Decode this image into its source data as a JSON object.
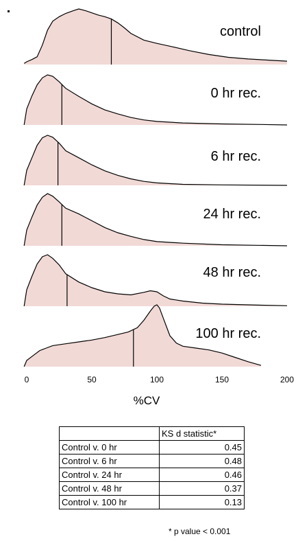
{
  "chart_data": {
    "type": "area",
    "xlabel": "%CV",
    "xlim": [
      0,
      200
    ],
    "x_ticks": [
      0,
      50,
      100,
      150,
      200
    ],
    "x_tick_labels": [
      "0",
      "50",
      "100",
      "150",
      "200"
    ],
    "fill_color": "#f1d9d6",
    "line_color": "#000000",
    "series": [
      {
        "name": "control",
        "median": 65,
        "points": [
          [
            -2,
            0.02
          ],
          [
            0,
            0.05
          ],
          [
            4,
            0.09
          ],
          [
            8,
            0.14
          ],
          [
            12,
            0.35
          ],
          [
            16,
            0.62
          ],
          [
            20,
            0.78
          ],
          [
            25,
            0.86
          ],
          [
            30,
            0.92
          ],
          [
            36,
            0.97
          ],
          [
            40,
            1.0
          ],
          [
            45,
            0.97
          ],
          [
            50,
            0.93
          ],
          [
            55,
            0.89
          ],
          [
            60,
            0.86
          ],
          [
            65,
            0.82
          ],
          [
            70,
            0.75
          ],
          [
            75,
            0.66
          ],
          [
            80,
            0.56
          ],
          [
            90,
            0.44
          ],
          [
            100,
            0.38
          ],
          [
            110,
            0.33
          ],
          [
            125,
            0.25
          ],
          [
            140,
            0.18
          ],
          [
            155,
            0.13
          ],
          [
            170,
            0.1
          ],
          [
            185,
            0.08
          ],
          [
            200,
            0.06
          ]
        ]
      },
      {
        "name": "0 hr rec.",
        "median": 27,
        "points": [
          [
            -2,
            0.0
          ],
          [
            0,
            0.32
          ],
          [
            4,
            0.58
          ],
          [
            8,
            0.8
          ],
          [
            12,
            0.94
          ],
          [
            16,
            1.0
          ],
          [
            20,
            0.97
          ],
          [
            25,
            0.86
          ],
          [
            30,
            0.73
          ],
          [
            40,
            0.57
          ],
          [
            50,
            0.42
          ],
          [
            60,
            0.3
          ],
          [
            70,
            0.22
          ],
          [
            80,
            0.15
          ],
          [
            90,
            0.1
          ],
          [
            100,
            0.07
          ],
          [
            120,
            0.04
          ],
          [
            150,
            0.02
          ],
          [
            180,
            0.01
          ],
          [
            200,
            0.0
          ]
        ]
      },
      {
        "name": "6 hr rec.",
        "median": 24,
        "points": [
          [
            -2,
            0.0
          ],
          [
            0,
            0.3
          ],
          [
            4,
            0.55
          ],
          [
            8,
            0.8
          ],
          [
            12,
            0.95
          ],
          [
            16,
            1.0
          ],
          [
            20,
            0.96
          ],
          [
            25,
            0.84
          ],
          [
            30,
            0.69
          ],
          [
            40,
            0.55
          ],
          [
            50,
            0.41
          ],
          [
            60,
            0.29
          ],
          [
            70,
            0.2
          ],
          [
            80,
            0.13
          ],
          [
            90,
            0.08
          ],
          [
            100,
            0.05
          ],
          [
            120,
            0.02
          ],
          [
            150,
            0.01
          ],
          [
            200,
            0.0
          ]
        ]
      },
      {
        "name": "24 hr rec.",
        "median": 27,
        "points": [
          [
            -2,
            0.0
          ],
          [
            0,
            0.3
          ],
          [
            4,
            0.55
          ],
          [
            8,
            0.78
          ],
          [
            12,
            0.93
          ],
          [
            16,
            1.0
          ],
          [
            20,
            0.95
          ],
          [
            25,
            0.84
          ],
          [
            30,
            0.72
          ],
          [
            40,
            0.61
          ],
          [
            50,
            0.48
          ],
          [
            60,
            0.35
          ],
          [
            70,
            0.25
          ],
          [
            80,
            0.18
          ],
          [
            90,
            0.12
          ],
          [
            100,
            0.08
          ],
          [
            120,
            0.05
          ],
          [
            150,
            0.02
          ],
          [
            200,
            0.0
          ]
        ]
      },
      {
        "name": "48 hr rec.",
        "median": 31,
        "points": [
          [
            -2,
            0.0
          ],
          [
            0,
            0.32
          ],
          [
            4,
            0.58
          ],
          [
            8,
            0.82
          ],
          [
            12,
            0.96
          ],
          [
            16,
            1.0
          ],
          [
            20,
            0.93
          ],
          [
            25,
            0.8
          ],
          [
            30,
            0.63
          ],
          [
            40,
            0.47
          ],
          [
            50,
            0.36
          ],
          [
            60,
            0.28
          ],
          [
            70,
            0.24
          ],
          [
            80,
            0.22
          ],
          [
            90,
            0.27
          ],
          [
            95,
            0.3
          ],
          [
            100,
            0.28
          ],
          [
            105,
            0.2
          ],
          [
            110,
            0.14
          ],
          [
            120,
            0.1
          ],
          [
            135,
            0.06
          ],
          [
            150,
            0.04
          ],
          [
            180,
            0.02
          ],
          [
            200,
            0.01
          ]
        ]
      },
      {
        "name": "100 hr rec.",
        "median": 82,
        "points": [
          [
            -2,
            0.0
          ],
          [
            0,
            0.1
          ],
          [
            5,
            0.18
          ],
          [
            10,
            0.26
          ],
          [
            15,
            0.3
          ],
          [
            20,
            0.34
          ],
          [
            30,
            0.37
          ],
          [
            40,
            0.4
          ],
          [
            50,
            0.43
          ],
          [
            60,
            0.47
          ],
          [
            70,
            0.52
          ],
          [
            78,
            0.56
          ],
          [
            85,
            0.63
          ],
          [
            90,
            0.75
          ],
          [
            95,
            0.9
          ],
          [
            98,
            0.98
          ],
          [
            100,
            1.0
          ],
          [
            102,
            0.95
          ],
          [
            105,
            0.78
          ],
          [
            110,
            0.5
          ],
          [
            115,
            0.38
          ],
          [
            120,
            0.33
          ],
          [
            130,
            0.3
          ],
          [
            140,
            0.27
          ],
          [
            150,
            0.22
          ],
          [
            160,
            0.15
          ],
          [
            170,
            0.08
          ],
          [
            180,
            0.02
          ]
        ]
      }
    ]
  },
  "table": {
    "header": [
      "",
      "KS d statistic*"
    ],
    "rows": [
      [
        "Control v. 0 hr",
        "0.45"
      ],
      [
        "Control v. 6 hr",
        "0.48"
      ],
      [
        "Control v. 24 hr",
        "0.46"
      ],
      [
        "Control v. 48 hr",
        "0.37"
      ],
      [
        "Control v. 100 hr",
        "0.13"
      ]
    ],
    "footnote": "* p value < 0.001"
  }
}
